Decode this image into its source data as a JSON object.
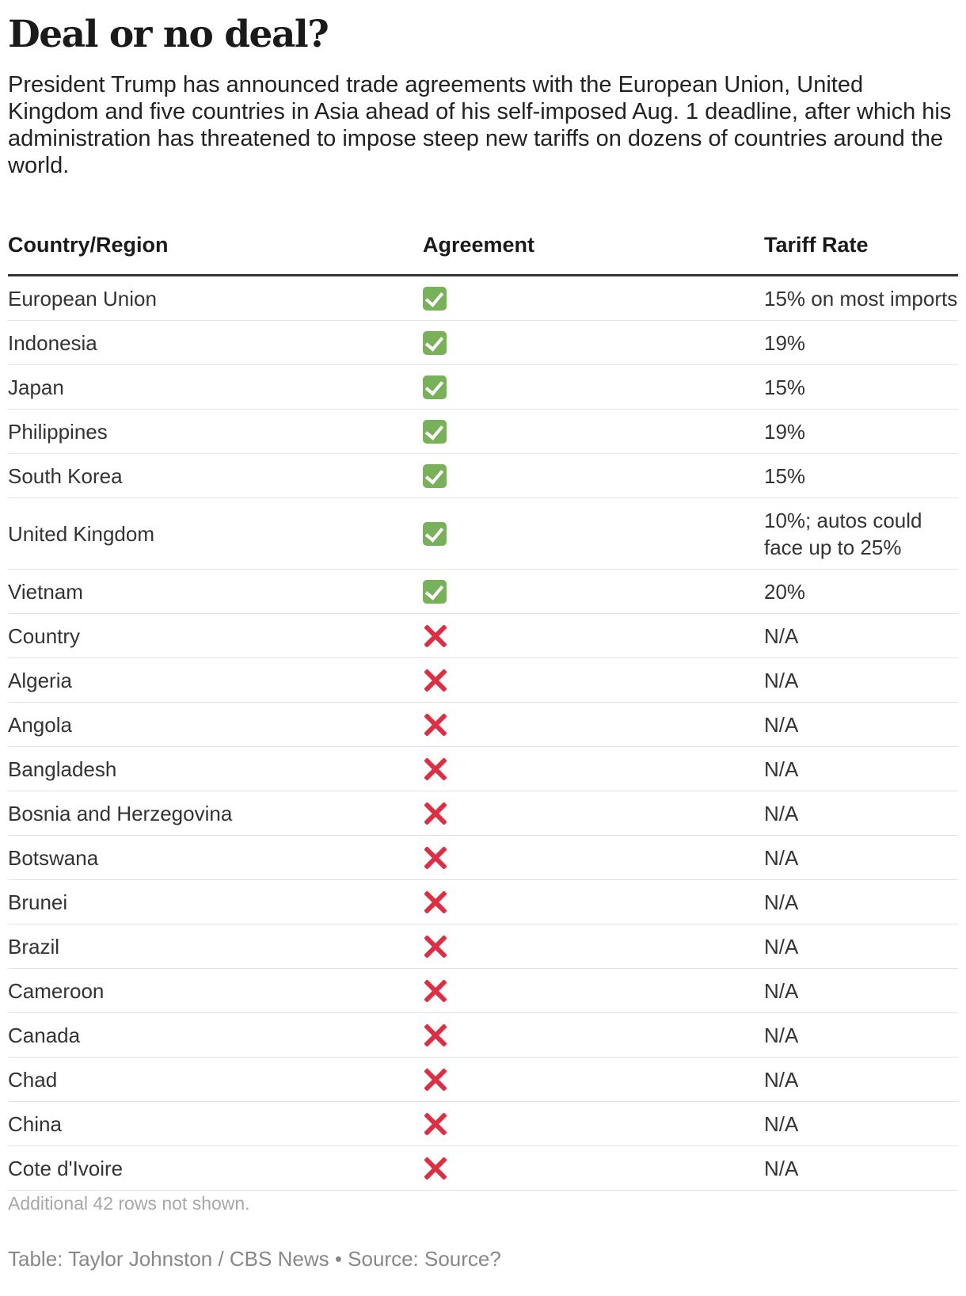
{
  "title": "Deal or no deal?",
  "subtitle": "President Trump has announced trade agreements with the European Union, United Kingdom and five countries in Asia ahead of his self-imposed Aug. 1 deadline, after which his administration has threatened to impose steep new tariffs on dozens of countries around the world.",
  "table": {
    "headers": [
      "Country/Region",
      "Agreement",
      "Tariff Rate"
    ],
    "rows": [
      {
        "country": "European Union",
        "agreement": "yes",
        "rate": "15% on most imports"
      },
      {
        "country": "Indonesia",
        "agreement": "yes",
        "rate": "19%"
      },
      {
        "country": "Japan",
        "agreement": "yes",
        "rate": "15%"
      },
      {
        "country": "Philippines",
        "agreement": "yes",
        "rate": "19%"
      },
      {
        "country": "South Korea",
        "agreement": "yes",
        "rate": "15%"
      },
      {
        "country": "United Kingdom",
        "agreement": "yes",
        "rate": "10%; autos could face up to 25%"
      },
      {
        "country": "Vietnam",
        "agreement": "yes",
        "rate": "20%"
      },
      {
        "country": "Country",
        "agreement": "no",
        "rate": "N/A"
      },
      {
        "country": "Algeria",
        "agreement": "no",
        "rate": "N/A"
      },
      {
        "country": "Angola",
        "agreement": "no",
        "rate": "N/A"
      },
      {
        "country": "Bangladesh",
        "agreement": "no",
        "rate": "N/A"
      },
      {
        "country": "Bosnia and Herzegovina",
        "agreement": "no",
        "rate": "N/A"
      },
      {
        "country": "Botswana",
        "agreement": "no",
        "rate": "N/A"
      },
      {
        "country": "Brunei",
        "agreement": "no",
        "rate": "N/A"
      },
      {
        "country": "Brazil",
        "agreement": "no",
        "rate": "N/A"
      },
      {
        "country": "Cameroon",
        "agreement": "no",
        "rate": "N/A"
      },
      {
        "country": "Canada",
        "agreement": "no",
        "rate": "N/A"
      },
      {
        "country": "Chad",
        "agreement": "no",
        "rate": "N/A"
      },
      {
        "country": "China",
        "agreement": "no",
        "rate": "N/A"
      },
      {
        "country": "Cote d'Ivoire",
        "agreement": "no",
        "rate": "N/A"
      }
    ]
  },
  "icons": {
    "yes": "check-mark-icon",
    "no": "cross-mark-icon"
  },
  "colors": {
    "check_bg": "#78b159",
    "cross": "#dd2e44"
  },
  "note": "Additional 42 rows not shown.",
  "footer": "Table: Taylor Johnston / CBS News • Source: Source?"
}
